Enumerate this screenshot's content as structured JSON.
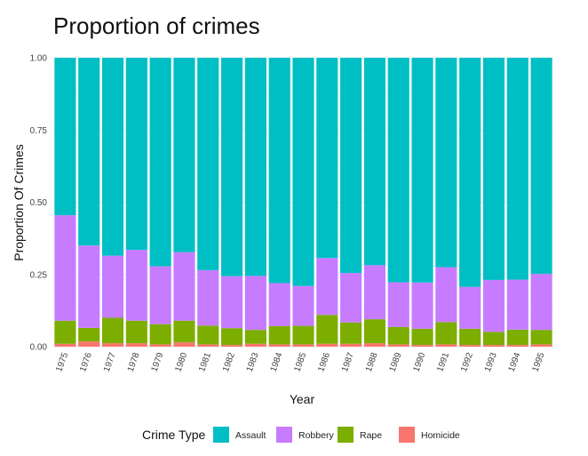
{
  "chart_data": {
    "type": "bar",
    "stacked": true,
    "title": "Proportion of crimes",
    "xlabel": "Year",
    "ylabel": "Proportion Of Crimes",
    "ylim": [
      0,
      1
    ],
    "yticks": [
      "0.00",
      "0.25",
      "0.50",
      "0.75",
      "1.00"
    ],
    "grid": true,
    "legend": {
      "title": "Crime Type",
      "position": "bottom"
    },
    "categories": [
      "1975",
      "1976",
      "1977",
      "1978",
      "1979",
      "1980",
      "1981",
      "1982",
      "1983",
      "1984",
      "1985",
      "1986",
      "1987",
      "1988",
      "1989",
      "1990",
      "1991",
      "1992",
      "1993",
      "1994",
      "1995"
    ],
    "series": [
      {
        "name": "Homicide",
        "color": "#F8766D",
        "values": [
          0.01,
          0.018,
          0.012,
          0.012,
          0.008,
          0.015,
          0.008,
          0.006,
          0.01,
          0.008,
          0.008,
          0.01,
          0.01,
          0.012,
          0.008,
          0.006,
          0.008,
          0.006,
          0.006,
          0.006,
          0.008
        ]
      },
      {
        "name": "Rape",
        "color": "#7CAE00",
        "values": [
          0.08,
          0.047,
          0.088,
          0.078,
          0.07,
          0.075,
          0.065,
          0.058,
          0.048,
          0.063,
          0.064,
          0.1,
          0.074,
          0.083,
          0.06,
          0.056,
          0.077,
          0.056,
          0.045,
          0.053,
          0.05
        ]
      },
      {
        "name": "Robbery",
        "color": "#C77CFF",
        "values": [
          0.365,
          0.285,
          0.215,
          0.245,
          0.2,
          0.237,
          0.192,
          0.18,
          0.187,
          0.149,
          0.138,
          0.197,
          0.171,
          0.187,
          0.155,
          0.16,
          0.19,
          0.145,
          0.18,
          0.173,
          0.194
        ]
      },
      {
        "name": "Assault",
        "color": "#00BFC4",
        "values": [
          0.545,
          0.65,
          0.685,
          0.665,
          0.722,
          0.673,
          0.735,
          0.756,
          0.755,
          0.78,
          0.79,
          0.693,
          0.745,
          0.718,
          0.777,
          0.778,
          0.725,
          0.793,
          0.769,
          0.768,
          0.748
        ]
      }
    ],
    "legend_order": [
      "Assault",
      "Robbery",
      "Rape",
      "Homicide"
    ]
  }
}
